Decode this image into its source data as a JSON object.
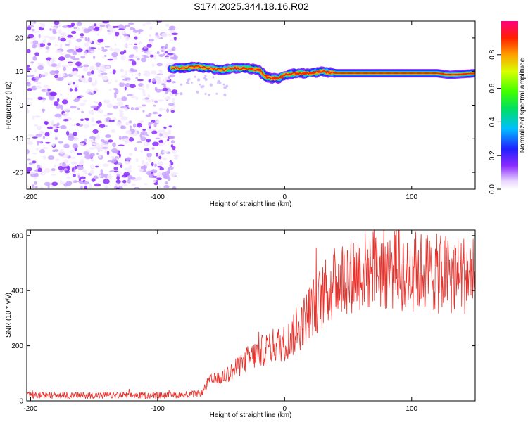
{
  "title": "S174.2025.344.18.16.R02",
  "chart_data": [
    {
      "type": "heatmap",
      "name": "spectrogram",
      "xlabel": "Height of straight line (km)",
      "ylabel": "Frequency (Hz)",
      "xlim": [
        -203,
        150
      ],
      "ylim": [
        -25,
        25
      ],
      "xticks": [
        -200,
        -100,
        0,
        100
      ],
      "yticks": [
        -20,
        -10,
        0,
        10,
        20
      ],
      "noise_region_x": [
        -203,
        -85
      ],
      "signal_track": {
        "x": [
          -89,
          -80,
          -70,
          -60,
          -50,
          -40,
          -30,
          -20,
          -15,
          -10,
          -5,
          0,
          10,
          20,
          30,
          40,
          50,
          60,
          80,
          100,
          120,
          130,
          150
        ],
        "freq": [
          11,
          11,
          11.5,
          11,
          10.5,
          11,
          11,
          10.5,
          8.5,
          8,
          8,
          9,
          9.5,
          9.5,
          10,
          9.5,
          9.5,
          9.5,
          9.5,
          9.5,
          9.5,
          9,
          9.5
        ]
      },
      "colorbar": {
        "label": "Normalized spectral amplitude",
        "range": [
          0.0,
          1.0
        ],
        "ticks": [
          "0.0",
          "0.2",
          "0.4",
          "0.6",
          "0.8"
        ]
      }
    },
    {
      "type": "line",
      "name": "snr",
      "xlabel": "Height of straight line (km)",
      "ylabel": "SNR (10 * v/v)",
      "xlim": [
        -203,
        150
      ],
      "ylim": [
        0,
        620
      ],
      "xticks": [
        -200,
        -100,
        0,
        100
      ],
      "yticks": [
        0,
        200,
        400,
        600
      ],
      "color": "#e8302a",
      "series": [
        {
          "name": "SNR",
          "x": [
            -203,
            -180,
            -150,
            -120,
            -90,
            -70,
            -65,
            -60,
            -50,
            -40,
            -30,
            -20,
            -10,
            0,
            10,
            20,
            30,
            40,
            50,
            60,
            70,
            80,
            90,
            100,
            110,
            120,
            130,
            140,
            150
          ],
          "y": [
            20,
            20,
            20,
            20,
            20,
            25,
            30,
            70,
            85,
            110,
            150,
            175,
            200,
            210,
            250,
            330,
            380,
            430,
            460,
            470,
            480,
            480,
            470,
            470,
            470,
            460,
            460,
            460,
            460
          ]
        }
      ]
    }
  ]
}
